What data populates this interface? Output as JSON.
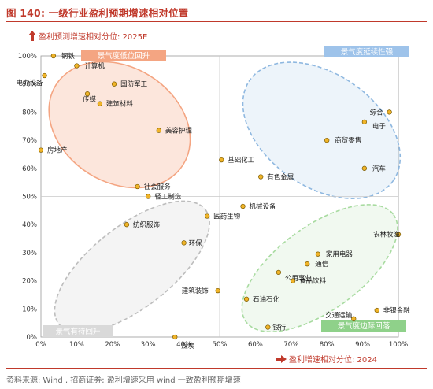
{
  "title": "图 140:  一级行业盈利预期增速相对位置",
  "y_axis_label": "盈利预测增速相对分位: 2025E",
  "x_axis_label": "盈利增速相对分位: 2024",
  "source": "资料来源: Wind , 招商证券; 盈利增速采用 wind 一致盈利预期增速",
  "colors": {
    "title": "#c0392b",
    "point": "#f0b429",
    "upper_left": "#f4a582",
    "upper_right": "#8fb8e0",
    "lower_left": "#bdbdbd",
    "lower_right": "#a8dba0"
  },
  "quadrants": [
    {
      "id": "upper_left",
      "label": "景气度低位回升"
    },
    {
      "id": "upper_right",
      "label": "景气度延续性强"
    },
    {
      "id": "lower_left",
      "label": "景气有待回升"
    },
    {
      "id": "lower_right",
      "label": "景气度边际回落"
    }
  ],
  "chart_data": {
    "type": "scatter",
    "xlim": [
      0,
      1
    ],
    "ylim": [
      0,
      1
    ],
    "x_ticks": [
      "0%",
      "10%",
      "20%",
      "30%",
      "40%",
      "50%",
      "60%",
      "70%",
      "80%",
      "90%",
      "100%"
    ],
    "y_ticks": [
      "0%",
      "10%",
      "20%",
      "30%",
      "40%",
      "50%",
      "60%",
      "70%",
      "80%",
      "90%",
      "100%"
    ],
    "reference_lines": {
      "x": 0.5,
      "y": 0.5
    },
    "points": [
      {
        "label": "钢铁",
        "x": 0.035,
        "y": 1.0
      },
      {
        "label": "计算机",
        "x": 0.1,
        "y": 0.965
      },
      {
        "label": "电力设备",
        "x": 0.01,
        "y": 0.93
      },
      {
        "label": "国防军工",
        "x": 0.205,
        "y": 0.9
      },
      {
        "label": "传媒",
        "x": 0.13,
        "y": 0.865
      },
      {
        "label": "建筑材料",
        "x": 0.165,
        "y": 0.83
      },
      {
        "label": "美容护理",
        "x": 0.33,
        "y": 0.735
      },
      {
        "label": "房地产",
        "x": 0.0,
        "y": 0.665
      },
      {
        "label": "社会服务",
        "x": 0.27,
        "y": 0.535
      },
      {
        "label": "轻工制造",
        "x": 0.3,
        "y": 0.5
      },
      {
        "label": "基础化工",
        "x": 0.505,
        "y": 0.63
      },
      {
        "label": "有色金属",
        "x": 0.615,
        "y": 0.57
      },
      {
        "label": "机械设备",
        "x": 0.565,
        "y": 0.465
      },
      {
        "label": "医药生物",
        "x": 0.465,
        "y": 0.43
      },
      {
        "label": "纺织服饰",
        "x": 0.24,
        "y": 0.4
      },
      {
        "label": "环保",
        "x": 0.4,
        "y": 0.335
      },
      {
        "label": "建筑装饰",
        "x": 0.495,
        "y": 0.165
      },
      {
        "label": "煤炭",
        "x": 0.375,
        "y": 0.0
      },
      {
        "label": "综合",
        "x": 0.975,
        "y": 0.8
      },
      {
        "label": "电子",
        "x": 0.905,
        "y": 0.765
      },
      {
        "label": "商贸零售",
        "x": 0.8,
        "y": 0.7
      },
      {
        "label": "汽车",
        "x": 0.905,
        "y": 0.6
      },
      {
        "label": "农林牧渔",
        "x": 1.0,
        "y": 0.365
      },
      {
        "label": "家用电器",
        "x": 0.775,
        "y": 0.295
      },
      {
        "label": "通信",
        "x": 0.745,
        "y": 0.26
      },
      {
        "label": "公用事业",
        "x": 0.665,
        "y": 0.23
      },
      {
        "label": "食品饮料",
        "x": 0.705,
        "y": 0.2
      },
      {
        "label": "石油石化",
        "x": 0.575,
        "y": 0.135
      },
      {
        "label": "交通运输",
        "x": 0.875,
        "y": 0.065
      },
      {
        "label": "非银金融",
        "x": 0.94,
        "y": 0.095
      },
      {
        "label": "银行",
        "x": 0.635,
        "y": 0.035
      }
    ]
  }
}
